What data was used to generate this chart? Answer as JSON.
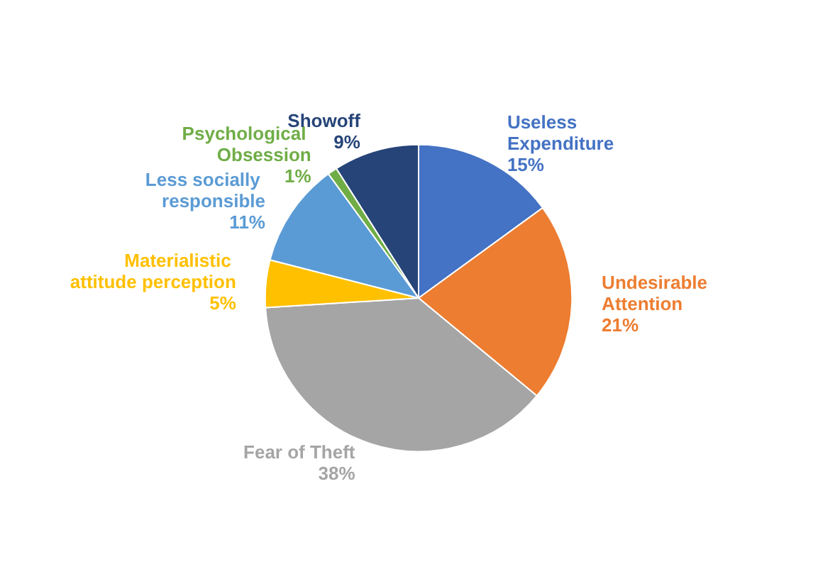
{
  "chart_data": {
    "type": "pie",
    "categories": [
      "Useless Expenditure",
      "Undesirable Attention",
      "Fear of Theft",
      "Materialistic attitude perception",
      "Less socially responsible",
      "Psychological Obsession",
      "Showoff"
    ],
    "values": [
      15,
      21,
      38,
      5,
      11,
      1,
      9
    ],
    "value_labels": [
      "15%",
      "21%",
      "38%",
      "5%",
      "11%",
      "1%",
      "9%"
    ],
    "colors": [
      "#4472c4",
      "#ed7d31",
      "#a5a5a5",
      "#ffc000",
      "#5b9bd5",
      "#70ad47",
      "#264478"
    ]
  }
}
